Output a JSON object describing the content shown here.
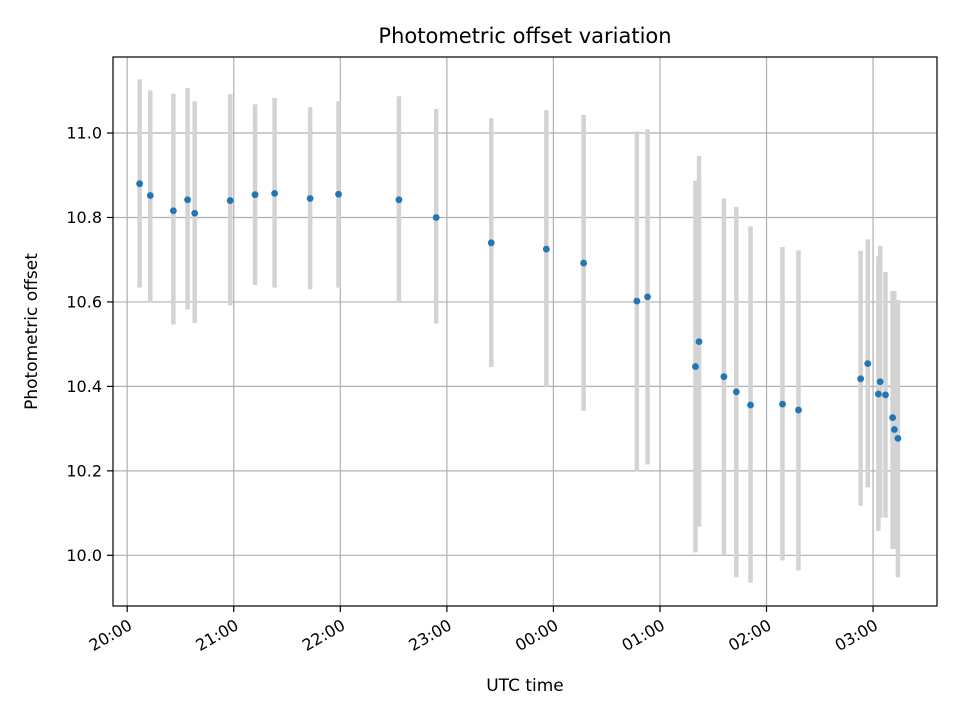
{
  "chart_data": {
    "type": "scatter",
    "title": "Photometric offset variation",
    "xlabel": "UTC time",
    "ylabel": "Photometric offset",
    "x_tick_labels": [
      "20:00",
      "21:00",
      "22:00",
      "23:00",
      "00:00",
      "01:00",
      "02:00",
      "03:00"
    ],
    "y_tick_labels": [
      "10.0",
      "10.2",
      "10.4",
      "10.6",
      "10.8",
      "11.0"
    ],
    "x_ticks": [
      "20:00",
      "21:00",
      "22:00",
      "23:00",
      "00:00",
      "01:00",
      "02:00",
      "03:00"
    ],
    "y_ticks": [
      10.0,
      10.2,
      10.4,
      10.6,
      10.8,
      11.0
    ],
    "xlim": [
      "19:52",
      "03:36"
    ],
    "ylim": [
      9.88,
      11.18
    ],
    "grid": true,
    "point_color": "#1f77b4",
    "errorbar_color": "#d3d3d3",
    "series": [
      {
        "points": [
          {
            "t": "20:07",
            "y": 10.88,
            "lo": 10.634,
            "hi": 11.127
          },
          {
            "t": "20:13",
            "y": 10.852,
            "lo": 10.598,
            "hi": 11.101
          },
          {
            "t": "20:26",
            "y": 10.816,
            "lo": 10.547,
            "hi": 11.093
          },
          {
            "t": "20:34",
            "y": 10.842,
            "lo": 10.582,
            "hi": 11.107
          },
          {
            "t": "20:38",
            "y": 10.81,
            "lo": 10.55,
            "hi": 11.075
          },
          {
            "t": "20:58",
            "y": 10.84,
            "lo": 10.592,
            "hi": 11.092
          },
          {
            "t": "21:12",
            "y": 10.854,
            "lo": 10.64,
            "hi": 11.068
          },
          {
            "t": "21:23",
            "y": 10.857,
            "lo": 10.634,
            "hi": 11.083
          },
          {
            "t": "21:43",
            "y": 10.845,
            "lo": 10.63,
            "hi": 11.061
          },
          {
            "t": "21:59",
            "y": 10.855,
            "lo": 10.634,
            "hi": 11.075
          },
          {
            "t": "22:33",
            "y": 10.842,
            "lo": 10.6,
            "hi": 11.087
          },
          {
            "t": "22:54",
            "y": 10.8,
            "lo": 10.549,
            "hi": 11.057
          },
          {
            "t": "23:25",
            "y": 10.74,
            "lo": 10.446,
            "hi": 11.035
          },
          {
            "t": "23:56",
            "y": 10.725,
            "lo": 10.398,
            "hi": 11.054
          },
          {
            "t": "00:17",
            "y": 10.692,
            "lo": 10.342,
            "hi": 11.043
          },
          {
            "t": "00:47",
            "y": 10.602,
            "lo": 10.198,
            "hi": 11.004
          },
          {
            "t": "00:53",
            "y": 10.612,
            "lo": 10.215,
            "hi": 11.009
          },
          {
            "t": "01:20",
            "y": 10.447,
            "lo": 10.007,
            "hi": 10.887
          },
          {
            "t": "01:22",
            "y": 10.506,
            "lo": 10.068,
            "hi": 10.946
          },
          {
            "t": "01:36",
            "y": 10.423,
            "lo": 10.0,
            "hi": 10.845
          },
          {
            "t": "01:43",
            "y": 10.387,
            "lo": 9.948,
            "hi": 10.825
          },
          {
            "t": "01:51",
            "y": 10.356,
            "lo": 9.935,
            "hi": 10.779
          },
          {
            "t": "02:09",
            "y": 10.358,
            "lo": 9.988,
            "hi": 10.73
          },
          {
            "t": "02:18",
            "y": 10.344,
            "lo": 9.964,
            "hi": 10.722
          },
          {
            "t": "02:53",
            "y": 10.418,
            "lo": 10.117,
            "hi": 10.721
          },
          {
            "t": "02:57",
            "y": 10.454,
            "lo": 10.161,
            "hi": 10.748
          },
          {
            "t": "03:03",
            "y": 10.382,
            "lo": 10.058,
            "hi": 10.708
          },
          {
            "t": "03:04",
            "y": 10.411,
            "lo": 10.089,
            "hi": 10.733
          },
          {
            "t": "03:07",
            "y": 10.38,
            "lo": 10.089,
            "hi": 10.671
          },
          {
            "t": "03:11",
            "y": 10.326,
            "lo": 10.015,
            "hi": 10.626
          },
          {
            "t": "03:12",
            "y": 10.298,
            "lo": 10.015,
            "hi": 10.626
          },
          {
            "t": "03:14",
            "y": 10.277,
            "lo": 9.948,
            "hi": 10.605
          }
        ]
      }
    ]
  }
}
